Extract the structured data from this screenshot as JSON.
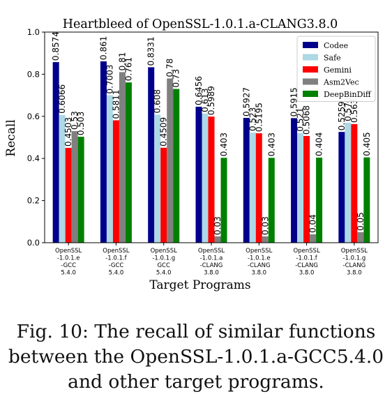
{
  "chart_data": {
    "type": "bar",
    "title": "Heartbleed of OpenSSL-1.0.1.a-CLANG3.8.0",
    "xlabel": "Target Programs",
    "ylabel": "Recall",
    "ylim": [
      0,
      1.0
    ],
    "yticks": [
      "0.0",
      "0.2",
      "0.4",
      "0.6",
      "0.8",
      "1.0"
    ],
    "grid": false,
    "legend_position": "top-right",
    "categories": [
      [
        "OpenSSL",
        "-1.0.1.e",
        "-GCC",
        "5.4.0"
      ],
      [
        "OpenSSL",
        "-1.0.1.f",
        "-GCC",
        "5.4.0"
      ],
      [
        "OpenSSL",
        "-1.0.1.g",
        "GCC",
        "5.4.0"
      ],
      [
        "OpenSSL",
        "-1.0.1.a",
        "-CLANG",
        "3.8.0"
      ],
      [
        "OpenSSL",
        "-1.0.1.e",
        "-CLANG",
        "3.8.0"
      ],
      [
        "OpenSSL",
        "-1.0.1.f",
        "-CLANG",
        "3.8.0"
      ],
      [
        "OpenSSL",
        "-1.0.1.g",
        "-CLANG",
        "3.8.0"
      ]
    ],
    "series": [
      {
        "name": "Codee",
        "color": "#00008b",
        "values": [
          0.8574,
          0.861,
          0.8331,
          0.6456,
          0.5927,
          0.5915,
          0.5259
        ],
        "labels": [
          "0.8574",
          "0.861",
          "0.8331",
          "0.6456",
          "0.5927",
          "0.5915",
          "0.5259"
        ]
      },
      {
        "name": "Safe",
        "color": "#add8e6",
        "values": [
          0.6066,
          0.7003,
          0.608,
          0.613,
          0.523,
          0.521,
          0.57
        ],
        "labels": [
          "0.6066",
          "0.7003",
          "0.608",
          "0.613",
          "0.523",
          "0.521",
          "0.570"
        ]
      },
      {
        "name": "Gemini",
        "color": "#ff0000",
        "values": [
          0.4503,
          0.5811,
          0.4509,
          0.5989,
          0.5195,
          0.5068,
          0.563
        ],
        "labels": [
          "0.4503",
          "0.5811",
          "0.4509",
          "0.5989",
          "0.5195",
          "0.5068",
          "0.563"
        ]
      },
      {
        "name": "Asm2Vec",
        "color": "#808080",
        "values": [
          0.53,
          0.81,
          0.78,
          0.03,
          0.03,
          0.04,
          0.05
        ],
        "labels": [
          "0.53",
          "0.81",
          "0.78",
          "0.03",
          "0.03",
          "0.04",
          "0.05"
        ]
      },
      {
        "name": "DeepBinDiff",
        "color": "#008000",
        "values": [
          0.503,
          0.761,
          0.73,
          0.403,
          0.403,
          0.404,
          0.405
        ],
        "labels": [
          "0.503",
          "0.761",
          "0.73",
          "0.403",
          "0.403",
          "0.404",
          "0.405"
        ]
      }
    ]
  },
  "caption": {
    "lines": [
      "Fig. 10: The recall of similar functions",
      "between the OpenSSL-1.0.1.a-GCC5.4.0",
      "and other target programs."
    ]
  }
}
